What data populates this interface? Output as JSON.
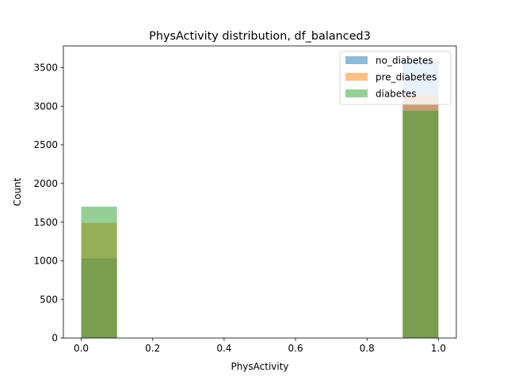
{
  "chart_data": {
    "type": "bar",
    "title": "PhysActivity distribution, df_balanced3",
    "xlabel": "PhysActivity",
    "ylabel": "Count",
    "xlim": [
      -0.05,
      1.05
    ],
    "ylim": [
      0,
      3780
    ],
    "xticks": [
      0.0,
      0.2,
      0.4,
      0.6,
      0.8,
      1.0
    ],
    "xtick_labels": [
      "0.0",
      "0.2",
      "0.4",
      "0.6",
      "0.8",
      "1.0"
    ],
    "yticks": [
      0,
      500,
      1000,
      1500,
      2000,
      2500,
      3000,
      3500
    ],
    "ytick_labels": [
      "0",
      "500",
      "1000",
      "1500",
      "2000",
      "2500",
      "3000",
      "3500"
    ],
    "bin_width": 0.1,
    "bins": [
      [
        0.0,
        0.1
      ],
      [
        0.9,
        1.0
      ]
    ],
    "grid": false,
    "legend_position": "upper right",
    "alpha": 0.5,
    "series": [
      {
        "name": "no_diabetes",
        "color": "#1f77b4",
        "values": [
          1030,
          3600
        ]
      },
      {
        "name": "pre_diabetes",
        "color": "#ff7f0e",
        "values": [
          1490,
          3140
        ]
      },
      {
        "name": "diabetes",
        "color": "#2ca02c",
        "values": [
          1700,
          2940
        ]
      }
    ]
  }
}
